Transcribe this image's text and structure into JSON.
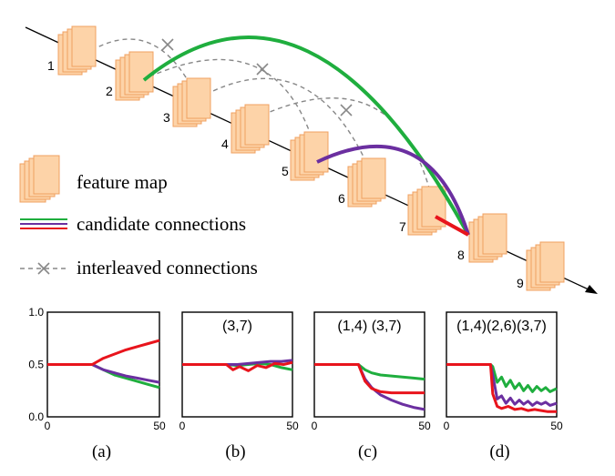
{
  "diagram": {
    "layers": [
      {
        "label": "1"
      },
      {
        "label": "2"
      },
      {
        "label": "3"
      },
      {
        "label": "4"
      },
      {
        "label": "5"
      },
      {
        "label": "6"
      },
      {
        "label": "7"
      },
      {
        "label": "8"
      },
      {
        "label": "9"
      }
    ],
    "candidate_connections": [
      {
        "from": "2",
        "to": "8",
        "color": "#1fae3e"
      },
      {
        "from": "5",
        "to": "8",
        "color": "#6b2fa0"
      },
      {
        "from": "7",
        "to": "8",
        "color": "#e8141c"
      }
    ],
    "interleaved_connections": [
      {
        "from": "1",
        "to": "3"
      },
      {
        "from": "2",
        "to": "5"
      },
      {
        "from": "3",
        "to": "6"
      },
      {
        "from": "4",
        "to": "7"
      }
    ],
    "legend": {
      "feature_map": "feature map",
      "candidate": "candidate connections",
      "interleaved": "interleaved connections"
    }
  },
  "colors": {
    "feature_fill": "#fdd3a8",
    "feature_stroke": "#f0a060",
    "green": "#1fae3e",
    "purple": "#6b2fa0",
    "red": "#e8141c",
    "dashed": "#888888"
  },
  "chart_data": [
    {
      "type": "line",
      "panel": "(a)",
      "title": "",
      "xlim": [
        0,
        50
      ],
      "ylim": [
        0,
        1
      ],
      "yticks": [
        "1.0",
        "0.5",
        "0.0"
      ],
      "xticks": [
        "0",
        "50"
      ],
      "series": [
        {
          "color": "#1fae3e",
          "x": [
            0,
            20,
            25,
            30,
            35,
            40,
            45,
            50
          ],
          "y": [
            0.5,
            0.5,
            0.45,
            0.4,
            0.37,
            0.34,
            0.31,
            0.28
          ]
        },
        {
          "color": "#6b2fa0",
          "x": [
            0,
            20,
            25,
            30,
            35,
            40,
            45,
            50
          ],
          "y": [
            0.5,
            0.5,
            0.45,
            0.42,
            0.39,
            0.37,
            0.35,
            0.33
          ]
        },
        {
          "color": "#e8141c",
          "x": [
            0,
            20,
            25,
            30,
            35,
            40,
            45,
            50
          ],
          "y": [
            0.5,
            0.5,
            0.56,
            0.6,
            0.64,
            0.67,
            0.7,
            0.73
          ]
        }
      ]
    },
    {
      "type": "line",
      "panel": "(b)",
      "title": "(3,7)",
      "xlim": [
        0,
        50
      ],
      "ylim": [
        0,
        1
      ],
      "yticks": [],
      "xticks": [
        "0",
        "50"
      ],
      "series": [
        {
          "color": "#1fae3e",
          "x": [
            0,
            20,
            25,
            30,
            35,
            40,
            45,
            50
          ],
          "y": [
            0.5,
            0.5,
            0.49,
            0.5,
            0.51,
            0.5,
            0.47,
            0.45
          ]
        },
        {
          "color": "#6b2fa0",
          "x": [
            0,
            20,
            25,
            30,
            35,
            40,
            45,
            50
          ],
          "y": [
            0.5,
            0.5,
            0.5,
            0.51,
            0.52,
            0.53,
            0.53,
            0.54
          ]
        },
        {
          "color": "#e8141c",
          "x": [
            0,
            20,
            23,
            26,
            30,
            34,
            38,
            42,
            46,
            50
          ],
          "y": [
            0.5,
            0.5,
            0.45,
            0.48,
            0.44,
            0.49,
            0.47,
            0.51,
            0.5,
            0.52
          ]
        }
      ]
    },
    {
      "type": "line",
      "panel": "(c)",
      "title": "(1,4) (3,7)",
      "xlim": [
        0,
        50
      ],
      "ylim": [
        0,
        1
      ],
      "yticks": [],
      "xticks": [
        "0",
        "50"
      ],
      "series": [
        {
          "color": "#1fae3e",
          "x": [
            0,
            20,
            23,
            26,
            30,
            35,
            40,
            45,
            50
          ],
          "y": [
            0.5,
            0.5,
            0.45,
            0.42,
            0.4,
            0.39,
            0.38,
            0.37,
            0.36
          ]
        },
        {
          "color": "#6b2fa0",
          "x": [
            0,
            20,
            23,
            26,
            30,
            35,
            40,
            45,
            50
          ],
          "y": [
            0.5,
            0.5,
            0.36,
            0.28,
            0.21,
            0.16,
            0.12,
            0.09,
            0.07
          ]
        },
        {
          "color": "#e8141c",
          "x": [
            0,
            20,
            23,
            26,
            30,
            35,
            40,
            45,
            50
          ],
          "y": [
            0.5,
            0.5,
            0.34,
            0.27,
            0.24,
            0.23,
            0.23,
            0.23,
            0.23
          ]
        }
      ]
    },
    {
      "type": "line",
      "panel": "(d)",
      "title": "(1,4)(2,6)(3,7)",
      "xlim": [
        0,
        50
      ],
      "ylim": [
        0,
        1
      ],
      "yticks": [],
      "xticks": [
        "0",
        "50"
      ],
      "series": [
        {
          "color": "#1fae3e",
          "x": [
            0,
            20,
            21,
            23,
            25,
            27,
            29,
            31,
            33,
            35,
            37,
            39,
            41,
            43,
            45,
            47,
            50
          ],
          "y": [
            0.5,
            0.5,
            0.48,
            0.33,
            0.38,
            0.29,
            0.35,
            0.27,
            0.32,
            0.25,
            0.3,
            0.24,
            0.29,
            0.25,
            0.28,
            0.24,
            0.27
          ]
        },
        {
          "color": "#6b2fa0",
          "x": [
            0,
            20,
            21,
            23,
            25,
            27,
            29,
            31,
            33,
            35,
            37,
            39,
            41,
            43,
            45,
            47,
            50
          ],
          "y": [
            0.5,
            0.5,
            0.4,
            0.17,
            0.2,
            0.13,
            0.18,
            0.12,
            0.16,
            0.12,
            0.15,
            0.11,
            0.14,
            0.12,
            0.14,
            0.11,
            0.13
          ]
        },
        {
          "color": "#e8141c",
          "x": [
            0,
            20,
            21,
            23,
            25,
            28,
            31,
            34,
            37,
            40,
            43,
            46,
            50
          ],
          "y": [
            0.5,
            0.5,
            0.22,
            0.1,
            0.08,
            0.1,
            0.07,
            0.08,
            0.06,
            0.07,
            0.06,
            0.05,
            0.05
          ]
        }
      ]
    }
  ]
}
